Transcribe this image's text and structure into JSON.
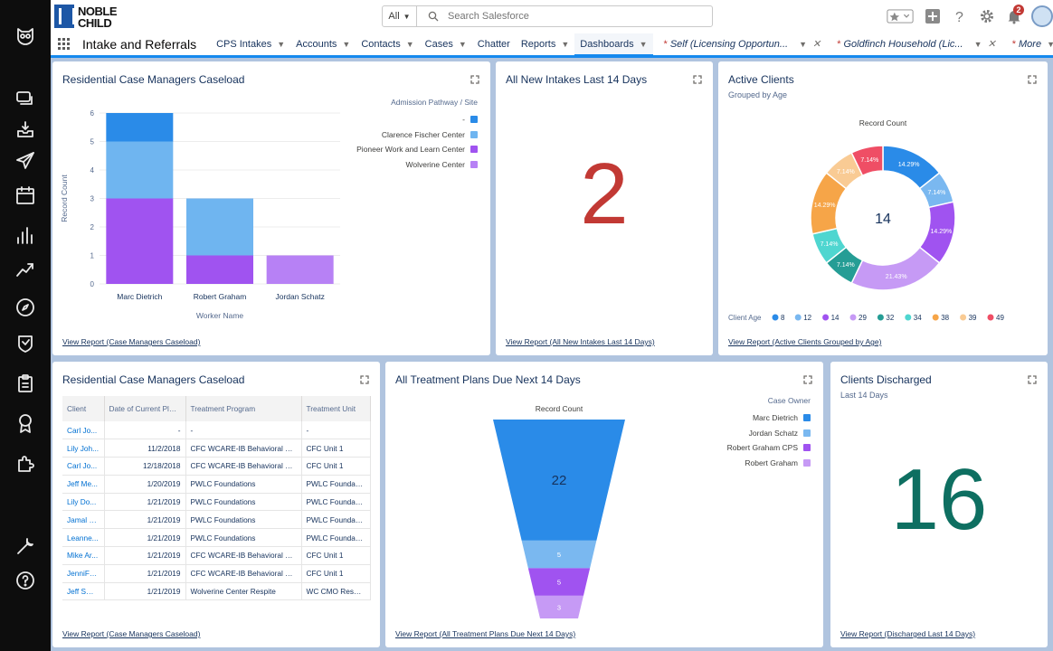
{
  "header": {
    "logo_line1": "NOBLE",
    "logo_line2": "CHILD",
    "search_scope": "All",
    "search_placeholder": "Search Salesforce",
    "notification_count": "2"
  },
  "nav": {
    "app_name": "Intake and Referrals",
    "items": [
      {
        "label": "CPS Intakes",
        "chevron": true
      },
      {
        "label": "Accounts",
        "chevron": true
      },
      {
        "label": "Contacts",
        "chevron": true
      },
      {
        "label": "Cases",
        "chevron": true
      },
      {
        "label": "Chatter",
        "chevron": false
      },
      {
        "label": "Reports",
        "chevron": true
      },
      {
        "label": "Dashboards",
        "chevron": true,
        "active": true
      }
    ],
    "workspace_tabs": [
      {
        "label": "Self (Licensing Opportun..."
      },
      {
        "label": "Goldfinch Household (Lic..."
      }
    ],
    "more_label": "More"
  },
  "cards": {
    "caseload_chart": {
      "title": "Residential Case Managers Caseload",
      "legend_title": "Admission Pathway / Site",
      "view_report": "View Report (Case Managers Caseload)"
    },
    "new_intakes": {
      "title": "All New Intakes Last 14 Days",
      "value": "2",
      "view_report": "View Report (All New Intakes Last 14 Days)"
    },
    "active_clients": {
      "title": "Active Clients",
      "subtitle": "Grouped by Age",
      "view_report": "View Report (Active Clients Grouped by Age)"
    },
    "caseload_table": {
      "title": "Residential Case Managers Caseload",
      "columns": [
        "Client",
        "Date of Current Plac...",
        "Treatment Program",
        "Treatment Unit"
      ],
      "rows": [
        [
          "Carl Jo...",
          "-",
          "-",
          "-"
        ],
        [
          "Lily Joh...",
          "11/2/2018",
          "CFC WCARE-IB Behavioral St...",
          "CFC Unit 1"
        ],
        [
          "Carl Jo...",
          "12/18/2018",
          "CFC WCARE-IB Behavioral St...",
          "CFC Unit 1"
        ],
        [
          "Jeff Me...",
          "1/20/2019",
          "PWLC Foundations",
          "PWLC Foundatio..."
        ],
        [
          "Lily Do...",
          "1/21/2019",
          "PWLC Foundations",
          "PWLC Foundatio..."
        ],
        [
          "Jamal R...",
          "1/21/2019",
          "PWLC Foundations",
          "PWLC Foundatio..."
        ],
        [
          "Leanne...",
          "1/21/2019",
          "PWLC Foundations",
          "PWLC Foundatio..."
        ],
        [
          "Mike Ar...",
          "1/21/2019",
          "CFC WCARE-IB Behavioral St...",
          "CFC Unit 1"
        ],
        [
          "JenniFe...",
          "1/21/2019",
          "CFC WCARE-IB Behavioral St...",
          "CFC Unit 1"
        ],
        [
          "Jeff Smi...",
          "1/21/2019",
          "Wolverine Center Respite",
          "WC CMO Respite"
        ]
      ],
      "view_report": "View Report (Case Managers Caseload)"
    },
    "treatment_plans": {
      "title": "All Treatment Plans Due Next 14 Days",
      "legend_title": "Case Owner",
      "view_report": "View Report (All Treatment Plans Due Next 14 Days)"
    },
    "discharged": {
      "title": "Clients Discharged",
      "subtitle": "Last 14 Days",
      "value": "16",
      "view_report": "View Report (Discharged Last 14 Days)"
    }
  },
  "chart_data": [
    {
      "id": "caseload",
      "type": "bar",
      "stacked": true,
      "categories": [
        "Marc Dietrich",
        "Robert Graham",
        "Jordan Schatz"
      ],
      "series": [
        {
          "name": "Wolverine Center",
          "color": "#b781f5",
          "values": [
            0,
            0,
            1
          ]
        },
        {
          "name": "Pioneer Work and Learn Center",
          "color": "#a053f0",
          "values": [
            3,
            1,
            0
          ]
        },
        {
          "name": "Clarence Fischer Center",
          "color": "#6fb5f0",
          "values": [
            2,
            2,
            0
          ]
        },
        {
          "name": "-",
          "color": "#2a8be8",
          "values": [
            1,
            0,
            0
          ]
        }
      ],
      "legend_order": [
        "-",
        "Clarence Fischer Center",
        "Pioneer Work and Learn Center",
        "Wolverine Center"
      ],
      "xlabel": "Worker Name",
      "ylabel": "Record Count",
      "ylim": [
        0,
        6
      ],
      "yticks": [
        0,
        1,
        2,
        3,
        4,
        5,
        6
      ],
      "legend": "top-right"
    },
    {
      "id": "active_clients",
      "type": "pie",
      "donut": true,
      "title": "Record Count",
      "center_value": "14",
      "legend_label": "Client Age",
      "slices": [
        {
          "label": "8",
          "value": 2,
          "pct": "14.29%",
          "color": "#2a8be8"
        },
        {
          "label": "12",
          "value": 1,
          "pct": "7.14%",
          "color": "#7ab8f0"
        },
        {
          "label": "14",
          "value": 2,
          "pct": "14.29%",
          "color": "#a053f0"
        },
        {
          "label": "29",
          "value": 3,
          "pct": "21.43%",
          "color": "#c69af5"
        },
        {
          "label": "32",
          "value": 1,
          "pct": "7.14%",
          "color": "#259d95"
        },
        {
          "label": "34",
          "value": 1,
          "pct": "7.14%",
          "color": "#4fd6d0"
        },
        {
          "label": "38",
          "value": 2,
          "pct": "14.29%",
          "color": "#f6a548"
        },
        {
          "label": "39",
          "value": 1,
          "pct": "7.14%",
          "color": "#f9cb94"
        },
        {
          "label": "49",
          "value": 1,
          "pct": "7.14%",
          "color": "#ef4e65"
        }
      ]
    },
    {
      "id": "treatment_plans",
      "type": "funnel",
      "title": "Record Count",
      "stages": [
        {
          "name": "Marc Dietrich",
          "value": 22,
          "color": "#2a8be8"
        },
        {
          "name": "Jordan Schatz",
          "value": 5,
          "color": "#7ab8f0"
        },
        {
          "name": "Robert Graham CPS",
          "value": 5,
          "color": "#a053f0"
        },
        {
          "name": "Robert Graham",
          "value": 3,
          "color": "#c69af5"
        }
      ]
    }
  ]
}
